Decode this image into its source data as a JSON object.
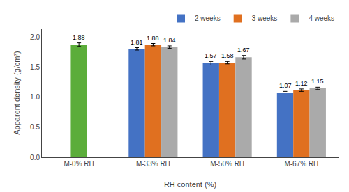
{
  "chart_data": {
    "type": "bar",
    "categories": [
      "M-0% RH",
      "M-33% RH",
      "M-50% RH",
      "M-67% RH"
    ],
    "series": [
      {
        "name": "2 weeks",
        "color": "#4472C4",
        "colors": [
          "#5BAD3A",
          "#4472C4",
          "#4472C4",
          "#4472C4"
        ],
        "values": [
          1.88,
          1.81,
          1.57,
          1.07
        ],
        "errors": [
          0.03,
          0.02,
          0.03,
          0.03
        ]
      },
      {
        "name": "3 weeks",
        "color": "#E07020",
        "values": [
          null,
          1.88,
          1.58,
          1.12
        ],
        "errors": [
          null,
          0.02,
          0.02,
          0.02
        ]
      },
      {
        "name": "4 weeks",
        "color": "#AAAAAA",
        "values": [
          null,
          1.84,
          1.67,
          1.15
        ],
        "errors": [
          null,
          0.02,
          0.03,
          0.02
        ]
      }
    ],
    "xlabel": "RH content (%)",
    "ylabel": "Apparent density (g/cm³)",
    "ylim": [
      0,
      2.15
    ],
    "yticks": [
      {
        "value": 0.0,
        "label": "0.0"
      },
      0.5,
      {
        "value": 1.0,
        "label": "1.0"
      },
      1.5,
      {
        "value": 2.0,
        "label": "2.0"
      }
    ],
    "grid": false,
    "legend": "upper right",
    "data_labels": true
  }
}
